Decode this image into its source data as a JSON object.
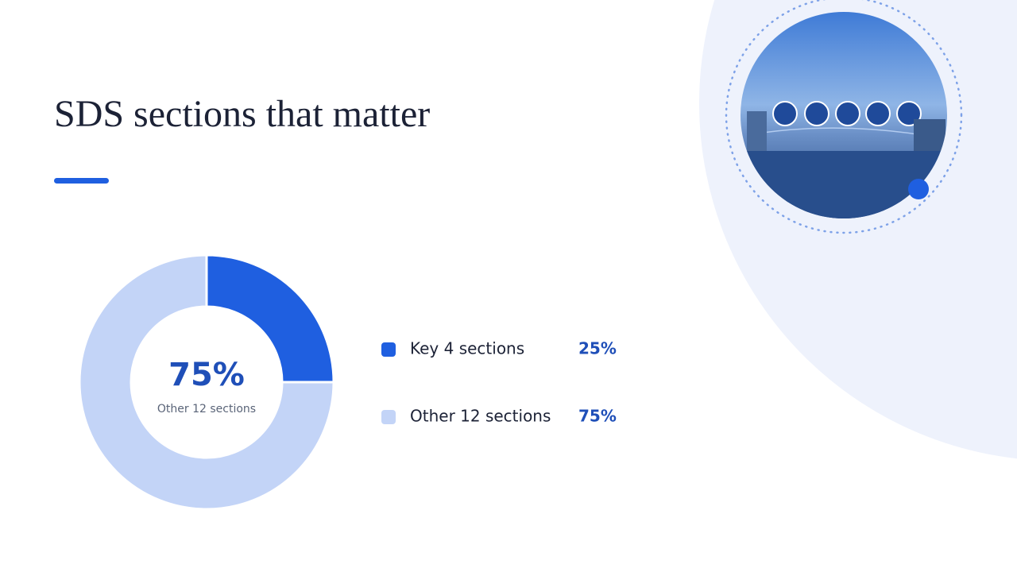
{
  "chart_data": {
    "type": "pie",
    "title": "SDS sections that matter",
    "categories": [
      "Key 4 sections",
      "Other 12 sections"
    ],
    "values": [
      25,
      75
    ],
    "value_labels": [
      "25%",
      "75%"
    ],
    "colors": [
      "#1f5fe0",
      "#c3d4f7"
    ]
  }
}
